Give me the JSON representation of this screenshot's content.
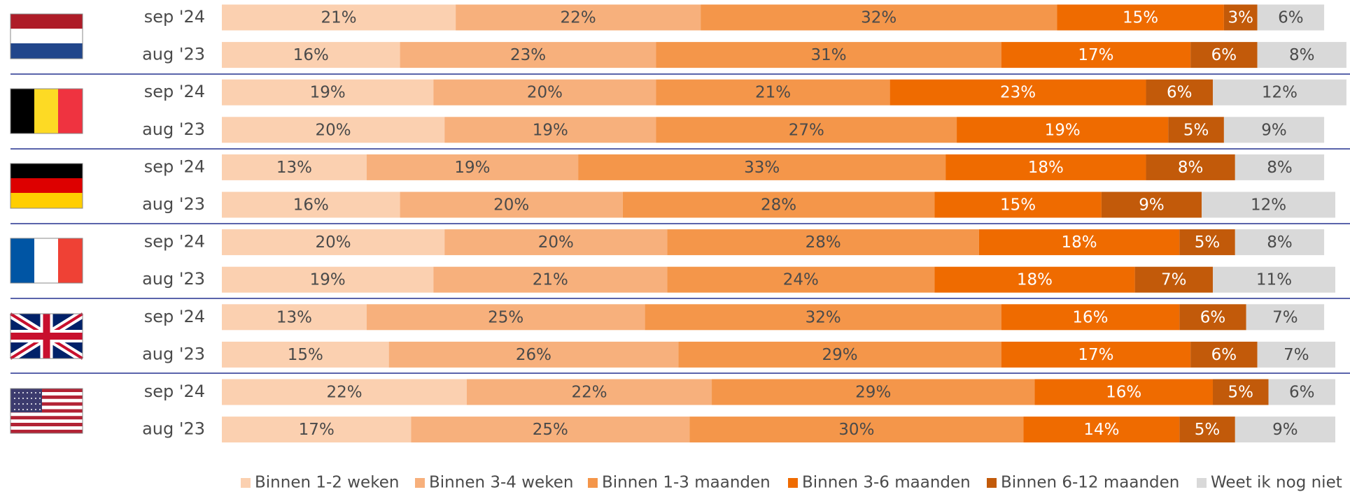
{
  "chart_data": {
    "type": "bar",
    "orientation": "horizontal",
    "stacked": true,
    "xlim": [
      0,
      100
    ],
    "categories": [
      "sep '24",
      "aug '23",
      "sep '24",
      "aug '23",
      "sep '24",
      "aug '23",
      "sep '24",
      "aug '23",
      "sep '24",
      "aug '23",
      "sep '24",
      "aug '23"
    ],
    "series": [
      {
        "name": "Binnen 1-2 weken",
        "color": "#fbd0b0",
        "values": [
          21,
          16,
          19,
          20,
          13,
          16,
          20,
          19,
          13,
          15,
          22,
          17
        ],
        "value_labels": [
          "21%",
          "16%",
          "19%",
          "20%",
          "13%",
          "16%",
          "20%",
          "19%",
          "13%",
          "15%",
          "22%",
          "17%"
        ]
      },
      {
        "name": "Binnen 3-4 weken",
        "color": "#f7b07c",
        "values": [
          22,
          23,
          20,
          19,
          19,
          20,
          20,
          21,
          25,
          26,
          22,
          25
        ],
        "value_labels": [
          "22%",
          "23%",
          "20%",
          "19%",
          "19%",
          "20%",
          "20%",
          "21%",
          "25%",
          "26%",
          "22%",
          "25%"
        ]
      },
      {
        "name": "Binnen 1-3 maanden",
        "color": "#f4964a",
        "values": [
          32,
          31,
          21,
          27,
          33,
          28,
          28,
          24,
          32,
          29,
          29,
          30
        ],
        "value_labels": [
          "32%",
          "31%",
          "21%",
          "27%",
          "33%",
          "28%",
          "28%",
          "24%",
          "32%",
          "29%",
          "29%",
          "30%"
        ]
      },
      {
        "name": "Binnen 3-6 maanden",
        "color": "#ef6b00",
        "values": [
          15,
          17,
          23,
          19,
          18,
          15,
          18,
          18,
          16,
          17,
          16,
          14
        ],
        "value_labels": [
          "15%",
          "17%",
          "23%",
          "19%",
          "18%",
          "15%",
          "18%",
          "18%",
          "16%",
          "17%",
          "16%",
          "14%"
        ]
      },
      {
        "name": "Binnen 6-12 maanden",
        "color": "#c25a0a",
        "values": [
          3,
          6,
          6,
          5,
          8,
          9,
          5,
          7,
          6,
          6,
          5,
          5
        ],
        "value_labels": [
          "3%",
          "6%",
          "6%",
          "5%",
          "8%",
          "9%",
          "5%",
          "7%",
          "6%",
          "6%",
          "5%",
          "5%"
        ]
      },
      {
        "name": "Weet ik nog niet",
        "color": "#d9d9d9",
        "values": [
          6,
          8,
          12,
          9,
          8,
          12,
          8,
          11,
          7,
          7,
          6,
          9
        ],
        "value_labels": [
          "6%",
          "8%",
          "12%",
          "9%",
          "8%",
          "12%",
          "8%",
          "11%",
          "7%",
          "7%",
          "6%",
          "9%"
        ]
      }
    ],
    "legend": "bottom"
  }
}
